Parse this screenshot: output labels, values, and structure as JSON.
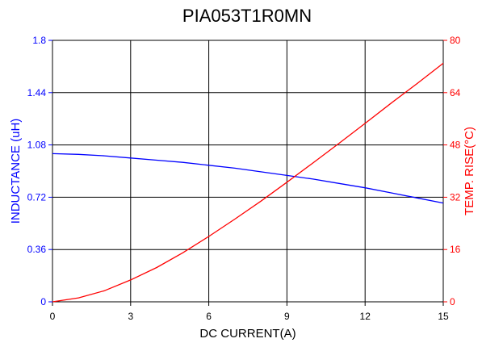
{
  "chart_data": {
    "type": "line",
    "title": "PIA053T1R0MN",
    "xlabel": "DC CURRENT(A)",
    "ylabel_left": "INDUCTANCE (uH)",
    "ylabel_right": "TEMP. RISE(°C)",
    "xlim": [
      0,
      15
    ],
    "ylim_left": [
      0,
      1.8
    ],
    "ylim_right": [
      0,
      80
    ],
    "x_ticks": [
      "0",
      "3",
      "6",
      "9",
      "12",
      "15"
    ],
    "y_left_ticks": [
      "0",
      "0.36",
      "0.72",
      "1.08",
      "1.44",
      "1.8"
    ],
    "y_right_ticks": [
      "0",
      "16",
      "32",
      "48",
      "64",
      "80"
    ],
    "grid": true,
    "colors": {
      "left_axis": "#0000ff",
      "right_axis": "#ff0000",
      "grid": "#000000"
    },
    "series": [
      {
        "axis": "left",
        "color": "#0000ff",
        "x": [
          0,
          1,
          2,
          3,
          4,
          5,
          6,
          7,
          8,
          9,
          10,
          11,
          12,
          13,
          14,
          15
        ],
        "values": [
          1.02,
          1.015,
          1.005,
          0.99,
          0.975,
          0.96,
          0.94,
          0.92,
          0.895,
          0.87,
          0.845,
          0.815,
          0.785,
          0.75,
          0.715,
          0.68
        ]
      },
      {
        "axis": "right",
        "color": "#ff0000",
        "x": [
          0,
          1,
          2,
          3,
          4,
          5,
          6,
          7,
          8,
          9,
          10,
          11,
          12,
          13,
          14,
          15
        ],
        "values": [
          0,
          1.2,
          3.4,
          6.7,
          10.5,
          15.0,
          20.0,
          25.3,
          30.8,
          36.6,
          42.5,
          48.5,
          54.6,
          60.8,
          66.8,
          73.0
        ]
      }
    ]
  }
}
